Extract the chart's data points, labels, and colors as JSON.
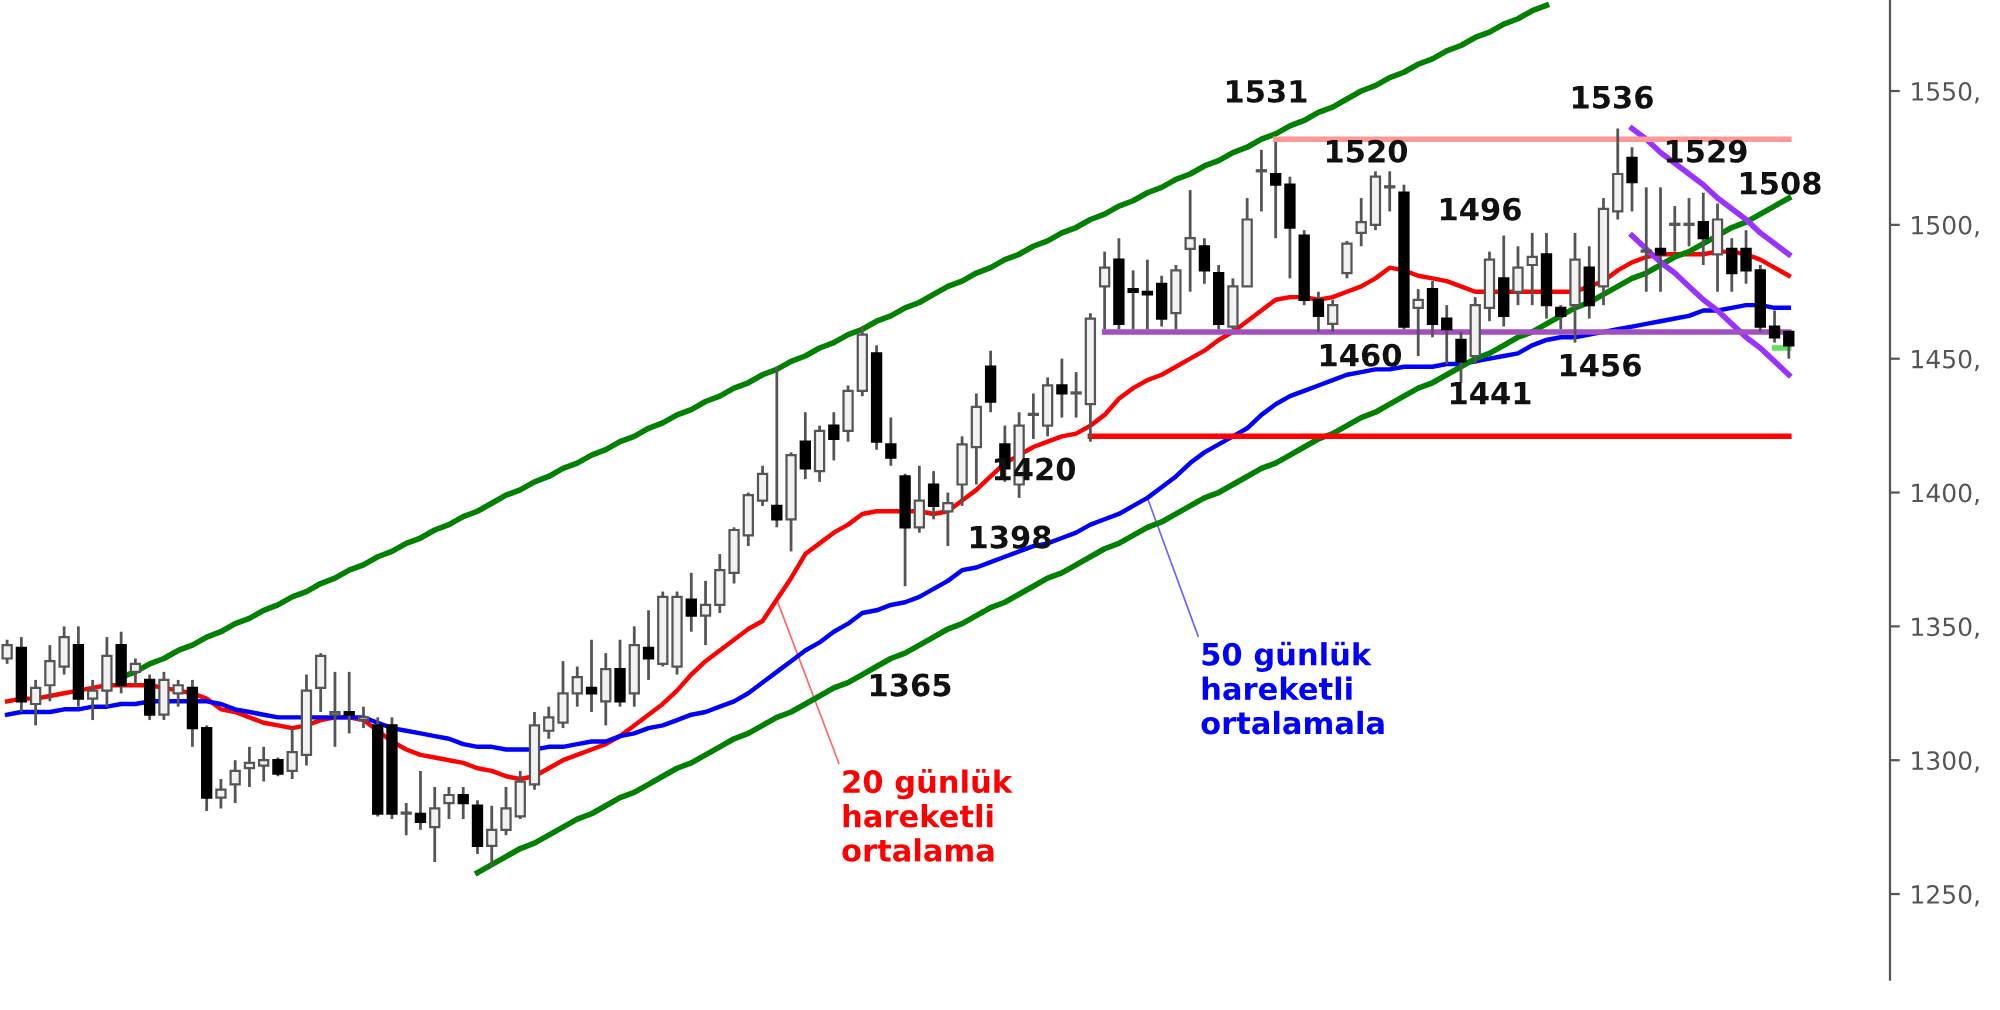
{
  "chart_data": {
    "type": "candlestick",
    "categories": [
      null,
      null,
      null,
      null,
      null,
      null,
      null,
      null,
      null,
      null,
      null,
      null,
      null,
      null,
      null,
      null,
      null,
      null,
      null,
      null,
      null,
      null,
      null,
      null,
      null,
      null,
      null,
      null,
      null,
      null,
      null,
      null,
      null,
      null,
      null,
      null,
      null,
      null,
      null,
      null,
      null,
      null,
      null,
      null,
      null,
      null,
      null,
      null,
      null,
      null,
      null,
      null,
      null,
      null,
      null,
      null,
      null,
      null,
      null,
      null,
      null,
      null,
      null,
      null,
      null,
      null,
      null,
      null,
      null,
      null,
      null,
      null,
      null,
      null,
      null,
      null,
      null,
      null,
      null,
      null,
      null,
      null,
      null,
      null,
      null,
      null,
      null,
      null,
      null,
      null,
      null,
      null,
      null,
      null,
      null,
      null,
      null,
      null,
      null,
      null,
      null,
      null,
      null,
      null,
      null,
      null,
      null,
      null,
      null,
      null,
      null,
      null,
      null,
      null,
      null,
      null,
      null,
      null,
      null,
      null,
      null,
      null,
      null,
      null,
      null,
      null
    ],
    "ohlc": [
      [
        1338,
        1345,
        1336,
        1343
      ],
      [
        1342,
        1346,
        1318,
        1322
      ],
      [
        1321,
        1330,
        1313,
        1327
      ],
      [
        1328,
        1343,
        1322,
        1337
      ],
      [
        1335,
        1350,
        1332,
        1346
      ],
      [
        1343,
        1350,
        1320,
        1323
      ],
      [
        1323,
        1330,
        1315,
        1326
      ],
      [
        1326,
        1346,
        1320,
        1339
      ],
      [
        1343,
        1348,
        1325,
        1328
      ],
      [
        1333,
        1338,
        1328,
        1336
      ],
      [
        1330,
        1332,
        1315,
        1317
      ],
      [
        1317,
        1333,
        1315,
        1330
      ],
      [
        1325,
        1330,
        1320,
        1328
      ],
      [
        1327,
        1330,
        1305,
        1312
      ],
      [
        1312,
        1313,
        1281,
        1286
      ],
      [
        1286,
        1293,
        1282,
        1289
      ],
      [
        1291,
        1300,
        1284,
        1296
      ],
      [
        1297,
        1305,
        1290,
        1299
      ],
      [
        1298,
        1305,
        1292,
        1300
      ],
      [
        1300,
        1301,
        1294,
        1295
      ],
      [
        1296,
        1312,
        1293,
        1303
      ],
      [
        1302,
        1332,
        1298,
        1326
      ],
      [
        1327,
        1340,
        1318,
        1339
      ],
      [
        1317,
        1333,
        1305,
        1318
      ],
      [
        1318,
        1333,
        1310,
        1317
      ],
      [
        1315,
        1320,
        1312,
        1316
      ],
      [
        1313,
        1316,
        1279,
        1280
      ],
      [
        1313,
        1316,
        1278,
        1280
      ],
      [
        1280,
        1284,
        1272,
        1280
      ],
      [
        1280,
        1296,
        1274,
        1277
      ],
      [
        1275,
        1290,
        1262,
        1282
      ],
      [
        1284,
        1290,
        1278,
        1287
      ],
      [
        1287,
        1290,
        1278,
        1284
      ],
      [
        1283,
        1285,
        1265,
        1268
      ],
      [
        1268,
        1283,
        1260,
        1274
      ],
      [
        1274,
        1290,
        1272,
        1282
      ],
      [
        1279,
        1296,
        1278,
        1292
      ],
      [
        1291,
        1318,
        1289,
        1313
      ],
      [
        1311,
        1320,
        1308,
        1316
      ],
      [
        1314,
        1337,
        1312,
        1325
      ],
      [
        1325,
        1335,
        1320,
        1331
      ],
      [
        1327,
        1345,
        1318,
        1325
      ],
      [
        1322,
        1340,
        1313,
        1334
      ],
      [
        1334,
        1345,
        1320,
        1322
      ],
      [
        1325,
        1350,
        1320,
        1343
      ],
      [
        1342,
        1356,
        1330,
        1338
      ],
      [
        1336,
        1363,
        1335,
        1361
      ],
      [
        1335,
        1363,
        1332,
        1361
      ],
      [
        1360,
        1370,
        1348,
        1354
      ],
      [
        1354,
        1367,
        1343,
        1358
      ],
      [
        1358,
        1377,
        1355,
        1371
      ],
      [
        1370,
        1387,
        1366,
        1386
      ],
      [
        1384,
        1400,
        1380,
        1399
      ],
      [
        1397,
        1410,
        1395,
        1407
      ],
      [
        1395,
        1447,
        1387,
        1390
      ],
      [
        1390,
        1415,
        1378,
        1414
      ],
      [
        1419,
        1430,
        1405,
        1409
      ],
      [
        1408,
        1425,
        1404,
        1423
      ],
      [
        1425,
        1430,
        1412,
        1420
      ],
      [
        1423,
        1440,
        1419,
        1438
      ],
      [
        1438,
        1462,
        1436,
        1459
      ],
      [
        1452,
        1455,
        1416,
        1419
      ],
      [
        1418,
        1428,
        1410,
        1413
      ],
      [
        1406,
        1407,
        1365,
        1387
      ],
      [
        1387,
        1410,
        1385,
        1397
      ],
      [
        1403,
        1408,
        1390,
        1395
      ],
      [
        1393,
        1400,
        1380,
        1396
      ],
      [
        1403,
        1421,
        1395,
        1418
      ],
      [
        1417,
        1437,
        1403,
        1432
      ],
      [
        1447,
        1453,
        1430,
        1434
      ],
      [
        1418,
        1425,
        1404,
        1409
      ],
      [
        1403,
        1430,
        1398,
        1425
      ],
      [
        1429,
        1437,
        1420,
        1429
      ],
      [
        1425,
        1443,
        1421,
        1440
      ],
      [
        1440,
        1450,
        1428,
        1437
      ],
      [
        1437,
        1445,
        1428,
        1437
      ],
      [
        1433,
        1467,
        1419,
        1465
      ],
      [
        1477,
        1490,
        1461,
        1484
      ],
      [
        1487,
        1495,
        1461,
        1463
      ],
      [
        1476,
        1483,
        1461,
        1475
      ],
      [
        1475,
        1487,
        1461,
        1474
      ],
      [
        1478,
        1481,
        1462,
        1465
      ],
      [
        1467,
        1485,
        1461,
        1483
      ],
      [
        1491,
        1513,
        1475,
        1495
      ],
      [
        1492,
        1495,
        1478,
        1483
      ],
      [
        1482,
        1485,
        1461,
        1463
      ],
      [
        1462,
        1480,
        1461,
        1477
      ],
      [
        1477,
        1510,
        1477,
        1502
      ],
      [
        1520,
        1528,
        1505,
        1520
      ],
      [
        1519,
        1531,
        1495,
        1515
      ],
      [
        1515,
        1518,
        1480,
        1499
      ],
      [
        1496,
        1498,
        1470,
        1472
      ],
      [
        1472,
        1475,
        1460,
        1466
      ],
      [
        1463,
        1472,
        1460,
        1470
      ],
      [
        1482,
        1494,
        1480,
        1493
      ],
      [
        1497,
        1510,
        1492,
        1501
      ],
      [
        1500,
        1520,
        1498,
        1518
      ],
      [
        1514,
        1520,
        1505,
        1514
      ],
      [
        1512,
        1515,
        1461,
        1462
      ],
      [
        1469,
        1476,
        1451,
        1472
      ],
      [
        1476,
        1479,
        1458,
        1463
      ],
      [
        1465,
        1470,
        1448,
        1461
      ],
      [
        1457,
        1460,
        1441,
        1449
      ],
      [
        1451,
        1473,
        1448,
        1470
      ],
      [
        1469,
        1490,
        1464,
        1487
      ],
      [
        1480,
        1496,
        1462,
        1466
      ],
      [
        1475,
        1492,
        1470,
        1484
      ],
      [
        1485,
        1497,
        1470,
        1488
      ],
      [
        1489,
        1497,
        1465,
        1470
      ],
      [
        1469,
        1470,
        1461,
        1466
      ],
      [
        1470,
        1497,
        1456,
        1487
      ],
      [
        1484,
        1492,
        1465,
        1470
      ],
      [
        1477,
        1510,
        1470,
        1506
      ],
      [
        1505,
        1536,
        1502,
        1519
      ],
      [
        1525,
        1529,
        1505,
        1516
      ],
      [
        1490,
        1514,
        1475,
        1490
      ],
      [
        1491,
        1514,
        1475,
        1489
      ],
      [
        1500,
        1507,
        1490,
        1500
      ],
      [
        1500,
        1510,
        1492,
        1500
      ],
      [
        1501,
        1512,
        1485,
        1495
      ],
      [
        1489,
        1508,
        1475,
        1502
      ],
      [
        1491,
        1495,
        1475,
        1482
      ],
      [
        1491,
        1498,
        1478,
        1483
      ],
      [
        1483,
        1485,
        1460,
        1462
      ],
      [
        1462,
        1468,
        1456,
        1458
      ],
      [
        1460,
        1460,
        1450,
        1455
      ]
    ],
    "series": [
      {
        "type": "line",
        "name": "20 günlük\nhareketli\nortalama",
        "color": "#ff0000",
        "values": [
          1322,
          1323,
          1323,
          1324,
          1325,
          1326,
          1327,
          1328,
          1328,
          1328,
          1328,
          1327,
          1326,
          1325,
          1323,
          1319,
          1318,
          1316,
          1314,
          1313,
          1312,
          1313,
          1315,
          1316,
          1316,
          1315,
          1311,
          1307,
          1304,
          1302,
          1301,
          1300,
          1299,
          1297,
          1296,
          1294,
          1293,
          1294,
          1297,
          1300,
          1302,
          1304,
          1306,
          1309,
          1313,
          1317,
          1321,
          1326,
          1332,
          1337,
          1341,
          1345,
          1349,
          1352,
          1360,
          1368,
          1377,
          1381,
          1385,
          1388,
          1392,
          1393,
          1393,
          1393,
          1393,
          1392,
          1393,
          1397,
          1401,
          1406,
          1411,
          1414,
          1417,
          1419,
          1421,
          1422,
          1425,
          1429,
          1435,
          1439,
          1442,
          1444,
          1447,
          1450,
          1453,
          1457,
          1460,
          1464,
          1468,
          1472,
          1473,
          1473,
          1472,
          1473,
          1475,
          1477,
          1480,
          1484,
          1483,
          1481,
          1480,
          1479,
          1477,
          1475,
          1475,
          1475,
          1475,
          1475,
          1475,
          1475,
          1475,
          1477,
          1479,
          1483,
          1486,
          1488,
          1489,
          1489,
          1489,
          1489,
          1490,
          1490,
          1489,
          1487,
          1484,
          1481
        ]
      },
      {
        "type": "line",
        "name": "50 günlük\nhareketli\nortalamala",
        "color": "#0000ff",
        "values": [
          1317,
          1318,
          1318,
          1318,
          1319,
          1319,
          1320,
          1320,
          1321,
          1321,
          1322,
          1322,
          1322,
          1322,
          1322,
          1321,
          1319,
          1318,
          1317,
          1316,
          1316,
          1316,
          1316,
          1316,
          1316,
          1316,
          1314,
          1312,
          1311,
          1310,
          1309,
          1308,
          1306,
          1305,
          1305,
          1304,
          1304,
          1304,
          1305,
          1305,
          1306,
          1307,
          1307,
          1309,
          1310,
          1312,
          1313,
          1315,
          1317,
          1318,
          1320,
          1322,
          1325,
          1329,
          1333,
          1337,
          1341,
          1344,
          1348,
          1351,
          1355,
          1356,
          1358,
          1359,
          1361,
          1364,
          1367,
          1371,
          1372,
          1374,
          1376,
          1378,
          1380,
          1381,
          1383,
          1385,
          1388,
          1390,
          1392,
          1395,
          1398,
          1402,
          1406,
          1411,
          1415,
          1418,
          1421,
          1424,
          1429,
          1433,
          1436,
          1438,
          1440,
          1442,
          1444,
          1445,
          1446,
          1446,
          1447,
          1447,
          1447,
          1448,
          1448,
          1449,
          1450,
          1451,
          1452,
          1455,
          1457,
          1458,
          1458,
          1459,
          1460,
          1461,
          1462,
          1463,
          1464,
          1465,
          1466,
          1468,
          1468,
          1469,
          1470,
          1470,
          1469,
          1469
        ]
      },
      {
        "type": "line",
        "color": "#008000",
        "values": [
          null,
          null,
          null,
          null,
          null,
          null,
          null,
          null,
          1331,
          1333,
          1336,
          1338,
          1341,
          1343,
          1346,
          1348,
          1351,
          1353,
          1356,
          1358,
          1361,
          1363,
          1366,
          1368,
          1371,
          1373,
          1376,
          1378,
          1381,
          1383,
          1386,
          1388,
          1391,
          1393,
          1396,
          1399,
          1401,
          1404,
          1406,
          1409,
          1411,
          1414,
          1416,
          1419,
          1421,
          1424,
          1426,
          1429,
          1431,
          1434,
          1436,
          1439,
          1441,
          1444,
          1446,
          1449,
          1451,
          1454,
          1456,
          1459,
          1461,
          1464,
          1466,
          1469,
          1471,
          1474,
          1477,
          1479,
          1482,
          1484,
          1487,
          1489,
          1492,
          1494,
          1497,
          1499,
          1502,
          1504,
          1507,
          1509,
          1512,
          1514,
          1517,
          1519,
          1522,
          1524,
          1527,
          1529,
          1532,
          1534,
          1537,
          1539,
          1542,
          1544,
          1547,
          1550,
          1552,
          1555,
          1557,
          1560,
          1562,
          1565,
          1567,
          1570,
          1572,
          1575,
          1577,
          1580,
          1582,
          null,
          null,
          null,
          null,
          null,
          null,
          null,
          null,
          null,
          null,
          null,
          null,
          null,
          null,
          null,
          null,
          null
        ]
      },
      {
        "type": "line",
        "color": "#008000",
        "values": [
          null,
          null,
          null,
          null,
          null,
          null,
          null,
          null,
          null,
          null,
          null,
          null,
          null,
          null,
          null,
          null,
          null,
          null,
          null,
          null,
          null,
          null,
          null,
          null,
          null,
          null,
          null,
          null,
          null,
          null,
          null,
          null,
          null,
          1258,
          1261,
          1264,
          1267,
          1269,
          1272,
          1275,
          1278,
          1280,
          1283,
          1286,
          1288,
          1291,
          1294,
          1297,
          1299,
          1302,
          1305,
          1308,
          1310,
          1313,
          1316,
          1318,
          1321,
          1324,
          1327,
          1329,
          1332,
          1335,
          1338,
          1340,
          1343,
          1346,
          1349,
          1351,
          1354,
          1357,
          1359,
          1362,
          1365,
          1368,
          1370,
          1373,
          1376,
          1379,
          1381,
          1384,
          1387,
          1389,
          1392,
          1395,
          1398,
          1400,
          1403,
          1406,
          1409,
          1411,
          1414,
          1417,
          1420,
          1422,
          1425,
          1428,
          1430,
          1433,
          1436,
          1439,
          1441,
          1444,
          1447,
          1450,
          1452,
          1455,
          1458,
          1460,
          1463,
          1466,
          1469,
          1471,
          1474,
          1477,
          1480,
          1482,
          1485,
          1488,
          1490,
          1493,
          1496,
          1499,
          1501,
          1504,
          1507,
          1510
        ]
      },
      {
        "type": "line",
        "color": "#9933ff",
        "values": [
          null,
          null,
          null,
          null,
          null,
          null,
          null,
          null,
          null,
          null,
          null,
          null,
          null,
          null,
          null,
          null,
          null,
          null,
          null,
          null,
          null,
          null,
          null,
          null,
          null,
          null,
          null,
          null,
          null,
          null,
          null,
          null,
          null,
          null,
          null,
          null,
          null,
          null,
          null,
          null,
          null,
          null,
          null,
          null,
          null,
          null,
          null,
          null,
          null,
          null,
          null,
          null,
          null,
          null,
          null,
          null,
          null,
          null,
          null,
          null,
          null,
          null,
          null,
          null,
          null,
          null,
          null,
          null,
          null,
          null,
          null,
          null,
          null,
          null,
          null,
          null,
          null,
          null,
          null,
          null,
          null,
          null,
          null,
          null,
          null,
          null,
          null,
          null,
          null,
          null,
          null,
          null,
          null,
          null,
          null,
          null,
          null,
          null,
          null,
          null,
          null,
          null,
          null,
          null,
          null,
          null,
          null,
          null,
          null,
          null,
          null,
          null,
          null,
          null,
          1536,
          1532,
          1527,
          1523,
          1519,
          1515,
          1510,
          1506,
          1502,
          1497,
          1493,
          1489
        ]
      },
      {
        "type": "line",
        "color": "#9933ff",
        "values": [
          null,
          null,
          null,
          null,
          null,
          null,
          null,
          null,
          null,
          null,
          null,
          null,
          null,
          null,
          null,
          null,
          null,
          null,
          null,
          null,
          null,
          null,
          null,
          null,
          null,
          null,
          null,
          null,
          null,
          null,
          null,
          null,
          null,
          null,
          null,
          null,
          null,
          null,
          null,
          null,
          null,
          null,
          null,
          null,
          null,
          null,
          null,
          null,
          null,
          null,
          null,
          null,
          null,
          null,
          null,
          null,
          null,
          null,
          null,
          null,
          null,
          null,
          null,
          null,
          null,
          null,
          null,
          null,
          null,
          null,
          null,
          null,
          null,
          null,
          null,
          null,
          null,
          null,
          null,
          null,
          null,
          null,
          null,
          null,
          null,
          null,
          null,
          null,
          null,
          null,
          null,
          null,
          null,
          null,
          null,
          null,
          null,
          null,
          null,
          null,
          null,
          null,
          null,
          null,
          null,
          null,
          null,
          null,
          null,
          null,
          null,
          null,
          null,
          null,
          1496,
          1491,
          1486,
          1482,
          1477,
          1472,
          1468,
          1463,
          1458,
          1454,
          1449,
          1444
        ]
      },
      {
        "type": "line",
        "color": "#a050c0",
        "values": [
          null,
          null,
          null,
          null,
          null,
          null,
          null,
          null,
          null,
          null,
          null,
          null,
          null,
          null,
          null,
          null,
          null,
          null,
          null,
          null,
          null,
          null,
          null,
          null,
          null,
          null,
          null,
          null,
          null,
          null,
          null,
          null,
          null,
          null,
          null,
          null,
          null,
          null,
          null,
          null,
          null,
          null,
          null,
          null,
          null,
          null,
          null,
          null,
          null,
          null,
          null,
          null,
          null,
          null,
          null,
          null,
          null,
          null,
          null,
          null,
          null,
          null,
          null,
          null,
          null,
          null,
          null,
          null,
          null,
          null,
          null,
          null,
          null,
          null,
          null,
          null,
          null,
          1460,
          1460,
          1460,
          1460,
          1460,
          1460,
          1460,
          1460,
          1460,
          1460,
          1460,
          1460,
          1460,
          1460,
          1460,
          1460,
          1460,
          1460,
          1460,
          1460,
          1460,
          1460,
          1460,
          1460,
          1460,
          1460,
          1460,
          1460,
          1460,
          1460,
          1460,
          1460,
          1460,
          1460,
          1460,
          1460,
          1460,
          1460,
          1460,
          1460,
          1460,
          1460,
          1460,
          1460,
          1460,
          1460,
          1460,
          1460,
          1460
        ]
      },
      {
        "type": "line",
        "color": "#ff9999",
        "values": [
          null,
          null,
          null,
          null,
          null,
          null,
          null,
          null,
          null,
          null,
          null,
          null,
          null,
          null,
          null,
          null,
          null,
          null,
          null,
          null,
          null,
          null,
          null,
          null,
          null,
          null,
          null,
          null,
          null,
          null,
          null,
          null,
          null,
          null,
          null,
          null,
          null,
          null,
          null,
          null,
          null,
          null,
          null,
          null,
          null,
          null,
          null,
          null,
          null,
          null,
          null,
          null,
          null,
          null,
          null,
          null,
          null,
          null,
          null,
          null,
          null,
          null,
          null,
          null,
          null,
          null,
          null,
          null,
          null,
          null,
          null,
          null,
          null,
          null,
          null,
          null,
          null,
          null,
          null,
          null,
          null,
          null,
          null,
          null,
          null,
          null,
          null,
          null,
          null,
          1532,
          1532,
          1532,
          1532,
          1532,
          1532,
          1532,
          1532,
          1532,
          1532,
          1532,
          1532,
          1532,
          1532,
          1532,
          1532,
          1532,
          1532,
          1532,
          1532,
          1532,
          1532,
          1532,
          1532,
          1532,
          1532,
          1532,
          1532,
          1532,
          1532,
          1532,
          1532,
          1532,
          1532,
          1532,
          1532,
          1532
        ]
      },
      {
        "type": "line",
        "color": "#ff0000",
        "values": [
          null,
          null,
          null,
          null,
          null,
          null,
          null,
          null,
          null,
          null,
          null,
          null,
          null,
          null,
          null,
          null,
          null,
          null,
          null,
          null,
          null,
          null,
          null,
          null,
          null,
          null,
          null,
          null,
          null,
          null,
          null,
          null,
          null,
          null,
          null,
          null,
          null,
          null,
          null,
          null,
          null,
          null,
          null,
          null,
          null,
          null,
          null,
          null,
          null,
          null,
          null,
          null,
          null,
          null,
          null,
          null,
          null,
          null,
          null,
          null,
          null,
          null,
          null,
          null,
          null,
          null,
          null,
          null,
          null,
          null,
          null,
          null,
          null,
          null,
          null,
          null,
          1421,
          1421,
          1421,
          1421,
          1421,
          1421,
          1421,
          1421,
          1421,
          1421,
          1421,
          1421,
          1421,
          1421,
          1421,
          1421,
          1421,
          1421,
          1421,
          1421,
          1421,
          1421,
          1421,
          1421,
          1421,
          1421,
          1421,
          1421,
          1421,
          1421,
          1421,
          1421,
          1421,
          1421,
          1421,
          1421,
          1421,
          1421,
          1421,
          1421,
          1421,
          1421,
          1421,
          1421,
          1421,
          1421,
          1421,
          1421,
          1421,
          1421
        ]
      },
      {
        "type": "line",
        "color": "#66dd66",
        "values": [
          null,
          null,
          null,
          null,
          null,
          null,
          null,
          null,
          null,
          null,
          null,
          null,
          null,
          null,
          null,
          null,
          null,
          null,
          null,
          null,
          null,
          null,
          null,
          null,
          null,
          null,
          null,
          null,
          null,
          null,
          null,
          null,
          null,
          null,
          null,
          null,
          null,
          null,
          null,
          null,
          null,
          null,
          null,
          null,
          null,
          null,
          null,
          null,
          null,
          null,
          null,
          null,
          null,
          null,
          null,
          null,
          null,
          null,
          null,
          null,
          null,
          null,
          null,
          null,
          null,
          null,
          null,
          null,
          null,
          null,
          null,
          null,
          null,
          null,
          null,
          null,
          null,
          null,
          null,
          null,
          null,
          null,
          null,
          null,
          null,
          null,
          null,
          null,
          null,
          null,
          null,
          null,
          null,
          null,
          null,
          null,
          null,
          null,
          null,
          null,
          null,
          null,
          null,
          null,
          null,
          null,
          null,
          null,
          null,
          null,
          null,
          null,
          null,
          null,
          null,
          null,
          null,
          null,
          null,
          null,
          null,
          null,
          null,
          null,
          1454,
          1454
        ]
      }
    ],
    "ylim": [
      1218,
      1584
    ],
    "yticks": [
      {
        "value": 1250,
        "label": "1250,"
      },
      {
        "value": 1300,
        "label": "1300,"
      },
      {
        "value": 1350,
        "label": "1350,"
      },
      {
        "value": 1400,
        "label": "1400,"
      },
      {
        "value": 1450,
        "label": "1450,"
      },
      {
        "value": 1500,
        "label": "1500,"
      },
      {
        "value": 1550,
        "label": "1550,"
      }
    ],
    "tick_labels": "y",
    "annotations": [
      "1531",
      "1520",
      "1496",
      "1536",
      "1529",
      "1508",
      "1460",
      "1441",
      "1456",
      "1420",
      "1398",
      "1365"
    ]
  }
}
